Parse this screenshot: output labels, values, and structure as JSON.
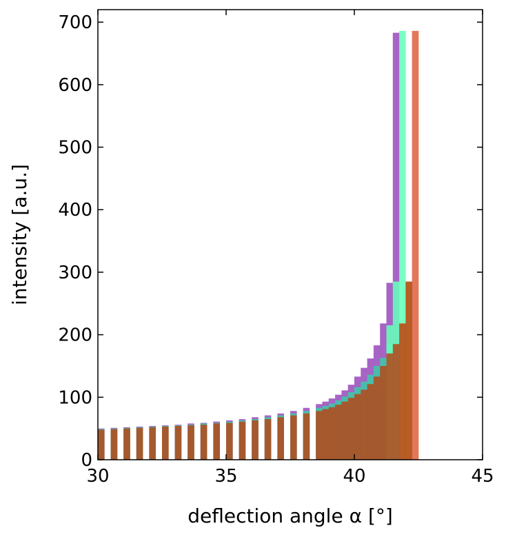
{
  "chart_data": {
    "type": "bar",
    "title": "",
    "xlabel": "deflection angle α [°]",
    "ylabel": "intensity [a.u.]",
    "xlim": [
      30,
      45
    ],
    "ylim": [
      0,
      720
    ],
    "xticks": [
      30,
      35,
      40,
      45
    ],
    "yticks": [
      0,
      100,
      200,
      300,
      400,
      500,
      600,
      700
    ],
    "grid": false,
    "legend": "none",
    "bin_width": 0.25,
    "series": [
      {
        "color": "#9b4fbd",
        "bins": [
          [
            30.0,
            50
          ],
          [
            30.5,
            51
          ],
          [
            31.0,
            52
          ],
          [
            31.5,
            53
          ],
          [
            32.0,
            54
          ],
          [
            32.5,
            55
          ],
          [
            33.0,
            56
          ],
          [
            33.5,
            58
          ],
          [
            34.0,
            59
          ],
          [
            34.5,
            61
          ],
          [
            35.0,
            63
          ],
          [
            35.5,
            65
          ],
          [
            36.0,
            68
          ],
          [
            36.5,
            71
          ],
          [
            37.0,
            74
          ],
          [
            37.5,
            78
          ],
          [
            38.0,
            83
          ],
          [
            38.5,
            89
          ],
          [
            38.75,
            93
          ],
          [
            39.0,
            98
          ],
          [
            39.25,
            104
          ],
          [
            39.5,
            111
          ],
          [
            39.75,
            120
          ],
          [
            40.0,
            133
          ],
          [
            40.25,
            147
          ],
          [
            40.5,
            162
          ],
          [
            40.75,
            183
          ],
          [
            41.0,
            218
          ],
          [
            41.25,
            283
          ],
          [
            41.5,
            683
          ]
        ]
      },
      {
        "color": "#3ec8a8",
        "bins": [
          [
            30.0,
            49
          ],
          [
            30.5,
            50
          ],
          [
            31.0,
            51
          ],
          [
            31.5,
            52
          ],
          [
            32.0,
            53
          ],
          [
            32.5,
            54
          ],
          [
            33.0,
            55
          ],
          [
            33.5,
            56
          ],
          [
            34.0,
            58
          ],
          [
            34.5,
            59
          ],
          [
            35.0,
            61
          ],
          [
            35.5,
            63
          ],
          [
            36.0,
            65
          ],
          [
            36.5,
            68
          ],
          [
            37.0,
            71
          ],
          [
            37.5,
            74
          ],
          [
            38.0,
            78
          ],
          [
            38.5,
            83
          ],
          [
            38.75,
            86
          ],
          [
            39.0,
            90
          ],
          [
            39.25,
            95
          ],
          [
            39.5,
            101
          ],
          [
            39.75,
            108
          ],
          [
            40.0,
            116
          ],
          [
            40.25,
            125
          ],
          [
            40.5,
            136
          ],
          [
            40.75,
            150
          ],
          [
            41.0,
            163
          ],
          [
            41.25,
            185
          ]
        ]
      },
      {
        "color": "#66ffbb",
        "bins": [
          [
            41.25,
            215
          ],
          [
            41.5,
            285
          ],
          [
            41.75,
            686
          ]
        ]
      },
      {
        "color": "#e8cf55",
        "bins": [
          [
            41.75,
            218
          ],
          [
            42.0,
            285
          ],
          [
            42.25,
            686
          ]
        ]
      },
      {
        "color": "#e06a5a",
        "bins": [
          [
            42.25,
            686
          ]
        ]
      },
      {
        "color": "#b04c1c",
        "bins": [
          [
            30.0,
            48
          ],
          [
            30.5,
            49
          ],
          [
            31.0,
            50
          ],
          [
            31.5,
            51
          ],
          [
            32.0,
            52
          ],
          [
            32.5,
            53
          ],
          [
            33.0,
            54
          ],
          [
            33.5,
            55
          ],
          [
            34.0,
            56
          ],
          [
            34.5,
            58
          ],
          [
            35.0,
            59
          ],
          [
            35.5,
            61
          ],
          [
            36.0,
            63
          ],
          [
            36.5,
            65
          ],
          [
            37.0,
            68
          ],
          [
            37.5,
            71
          ],
          [
            38.0,
            74
          ],
          [
            38.5,
            78
          ],
          [
            38.75,
            81
          ],
          [
            39.0,
            84
          ],
          [
            39.25,
            88
          ],
          [
            39.5,
            93
          ],
          [
            39.75,
            99
          ],
          [
            40.0,
            105
          ],
          [
            40.25,
            112
          ],
          [
            40.5,
            121
          ],
          [
            40.75,
            133
          ],
          [
            41.0,
            150
          ],
          [
            41.25,
            170
          ],
          [
            41.5,
            185
          ],
          [
            41.75,
            218
          ],
          [
            42.0,
            285
          ]
        ]
      }
    ]
  }
}
